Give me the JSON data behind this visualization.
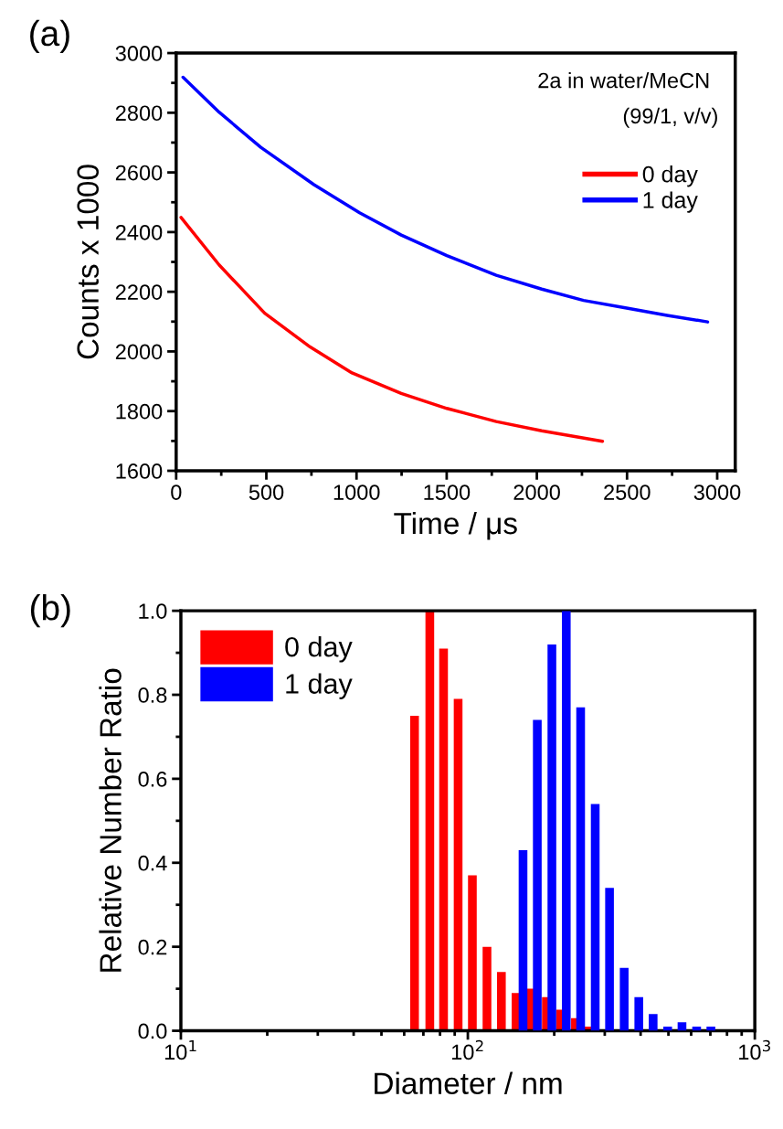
{
  "chart_data": [
    {
      "type": "line",
      "title": "(a)",
      "xlabel": "Time / μs",
      "ylabel": "Counts x 1000",
      "annotations": [
        "2a in water/MeCN",
        "(99/1, v/v)"
      ],
      "xlim": [
        0,
        3100
      ],
      "xticks": [
        0,
        500,
        1000,
        1500,
        2000,
        2500,
        3000
      ],
      "ylim": [
        1600,
        3000
      ],
      "yticks": [
        1600,
        1800,
        2000,
        2200,
        2400,
        2600,
        2800,
        3000
      ],
      "grid": false,
      "legend": "top right",
      "marker": "none",
      "line_style": "solid",
      "series": [
        {
          "name": "0 day",
          "color": "#ff0000",
          "x": [
            27,
            238,
            491,
            743,
            975,
            1248,
            1501,
            1775,
            2027,
            2364
          ],
          "values": [
            2449,
            2290,
            2128,
            2015,
            1928,
            1859,
            1809,
            1765,
            1734,
            1699
          ]
        },
        {
          "name": "1 day",
          "color": "#0000ff",
          "x": [
            38,
            238,
            469,
            764,
            1017,
            1248,
            1501,
            1775,
            2027,
            2259,
            2491,
            2722,
            2947
          ],
          "values": [
            2919,
            2802,
            2684,
            2559,
            2465,
            2390,
            2321,
            2255,
            2209,
            2171,
            2146,
            2121,
            2099
          ]
        }
      ]
    },
    {
      "type": "bar",
      "title": "(b)",
      "xlabel": "Diameter / nm",
      "ylabel": "Relative Number Ratio",
      "log": "x",
      "xlim": [
        10,
        1000
      ],
      "xticks": [
        {
          "value": 10,
          "label": "10$^{1}$"
        },
        {
          "value": 100,
          "label": "10$^{2}$"
        },
        {
          "value": 1000,
          "label": "10$^{3}$"
        }
      ],
      "ylim": [
        0,
        1.0
      ],
      "yticks": [
        {
          "value": 0,
          "label": "0.0"
        },
        {
          "value": 0.2,
          "label": "0.2"
        },
        {
          "value": 0.4,
          "label": "0.4"
        },
        {
          "value": 0.6,
          "label": "0.6"
        },
        {
          "value": 0.8,
          "label": "0.8"
        },
        {
          "value": 1.0,
          "label": "1.0"
        }
      ],
      "grid": false,
      "legend": "top left",
      "series": [
        {
          "name": "0 day",
          "color": "#ff0000",
          "x": [
            65.2,
            73.7,
            82.3,
            92.5,
            103.7,
            116.6,
            130.9,
            147.2,
            166.3,
            187.8,
            210.8,
            237.1,
            262.5
          ],
          "values": [
            0.75,
            1.0,
            0.91,
            0.79,
            0.37,
            0.2,
            0.14,
            0.09,
            0.1,
            0.08,
            0.05,
            0.03,
            0.01
          ]
        },
        {
          "name": "1 day",
          "color": "#0000ff",
          "x": [
            155.7,
            174.6,
            196.3,
            220.3,
            247.2,
            277.9,
            311.7,
            350.6,
            394.2,
            442.3,
            496.9,
            557.5,
            627,
            703
          ],
          "values": [
            0.43,
            0.74,
            0.92,
            1.0,
            0.77,
            0.54,
            0.34,
            0.15,
            0.08,
            0.04,
            0.01,
            0.02,
            0.01,
            0.01
          ]
        }
      ]
    }
  ]
}
